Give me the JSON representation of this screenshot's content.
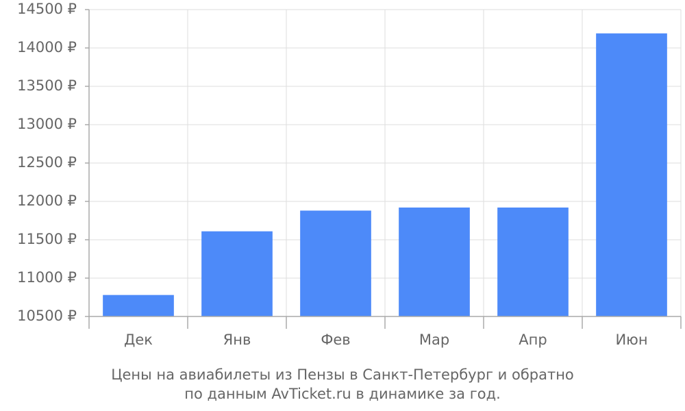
{
  "chart_data": {
    "type": "bar",
    "caption": [
      "Цены на авиабилеты из Пензы в Санкт-Петербург и обратно",
      "по данным AvTicket.ru в динамике за год."
    ],
    "categories": [
      "Дек",
      "Янв",
      "Фев",
      "Мар",
      "Апр",
      "Июн"
    ],
    "values": [
      10780,
      11610,
      11880,
      11920,
      11920,
      14190
    ],
    "color": "#4d8af9",
    "ylim": [
      10500,
      14500
    ],
    "yticks": [
      {
        "value": 10500,
        "label": "10500 ₽"
      },
      {
        "value": 11000,
        "label": "11000 ₽"
      },
      {
        "value": 11500,
        "label": "11500 ₽"
      },
      {
        "value": 12000,
        "label": "12000 ₽"
      },
      {
        "value": 12500,
        "label": "12500 ₽"
      },
      {
        "value": 13000,
        "label": "13000 ₽"
      },
      {
        "value": 13500,
        "label": "13500 ₽"
      },
      {
        "value": 14000,
        "label": "14000 ₽"
      },
      {
        "value": 14500,
        "label": "14500 ₽"
      }
    ],
    "grid": true
  }
}
